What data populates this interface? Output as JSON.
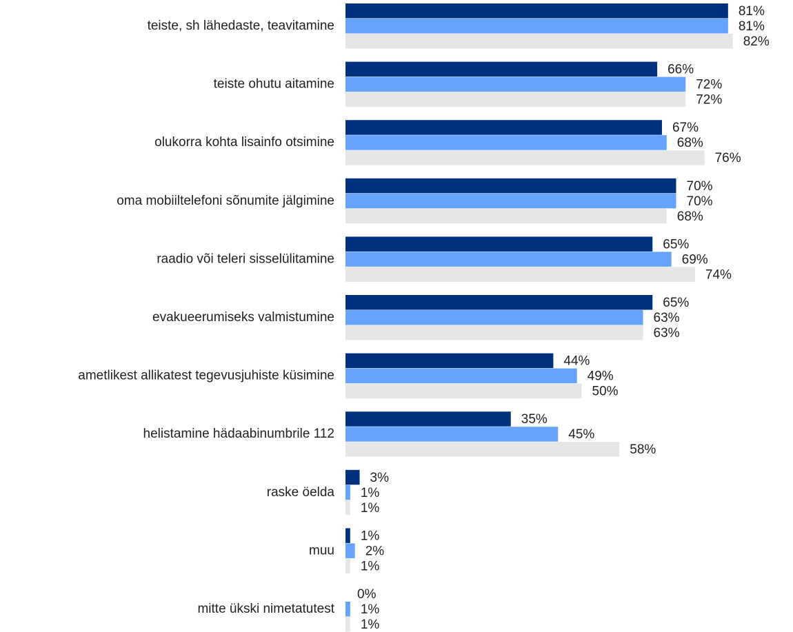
{
  "chart_data": {
    "type": "barh",
    "categories": [
      "teiste, sh lähedaste, teavitamine",
      "teiste ohutu aitamine",
      "olukorra kohta lisainfo otsimine",
      "oma mobiiltelefoni sõnumite jälgimine",
      "raadio või teleri sisselülitamine",
      "evakueerumiseks valmistumine",
      "ametlikest allikatest tegevusjuhiste küsimine",
      "helistamine hädaabinumbrile 112",
      "raske öelda",
      "muu",
      "mitte ükski nimetatutest"
    ],
    "series": [
      {
        "color": "#00317f",
        "values": [
          81,
          66,
          67,
          70,
          65,
          65,
          44,
          35,
          3,
          1,
          0
        ],
        "value_labels": [
          "81%",
          "66%",
          "67%",
          "70%",
          "65%",
          "65%",
          "44%",
          "35%",
          "3%",
          "1%",
          "0%"
        ]
      },
      {
        "color": "#66a3ff",
        "values": [
          81,
          72,
          68,
          70,
          69,
          63,
          49,
          45,
          1,
          2,
          1
        ],
        "value_labels": [
          "81%",
          "72%",
          "68%",
          "70%",
          "69%",
          "63%",
          "49%",
          "45%",
          "1%",
          "2%",
          "1%"
        ]
      },
      {
        "color": "#e6e6e6",
        "values": [
          82,
          72,
          76,
          68,
          74,
          63,
          50,
          58,
          1,
          1,
          1
        ],
        "value_labels": [
          "82%",
          "72%",
          "76%",
          "68%",
          "74%",
          "63%",
          "50%",
          "58%",
          "1%",
          "1%",
          "1%"
        ]
      }
    ]
  }
}
